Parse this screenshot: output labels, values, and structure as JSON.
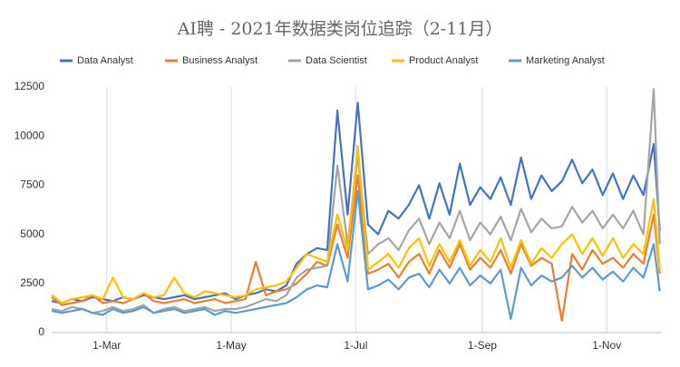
{
  "chart_data": {
    "type": "line",
    "title": "AI聘 - 2021年数据类岗位追踪（2-11月）",
    "x": [
      "02-02",
      "02-07",
      "02-12",
      "02-17",
      "02-22",
      "02-27",
      "03-04",
      "03-09",
      "03-14",
      "03-19",
      "03-24",
      "03-29",
      "04-03",
      "04-08",
      "04-13",
      "04-18",
      "04-23",
      "04-28",
      "05-03",
      "05-08",
      "05-13",
      "05-18",
      "05-23",
      "05-28",
      "06-02",
      "06-07",
      "06-12",
      "06-17",
      "06-22",
      "06-27",
      "07-02",
      "07-07",
      "07-12",
      "07-17",
      "07-22",
      "07-27",
      "08-01",
      "08-06",
      "08-11",
      "08-16",
      "08-21",
      "08-26",
      "08-31",
      "09-05",
      "09-10",
      "09-15",
      "09-20",
      "09-25",
      "09-30",
      "10-05",
      "10-10",
      "10-15",
      "10-20",
      "10-25",
      "10-30",
      "11-04",
      "11-09",
      "11-14",
      "11-19",
      "11-24",
      "11-27"
    ],
    "series": [
      {
        "name": "Data Analyst",
        "color": "#4472c4",
        "values": [
          1600,
          1500,
          1700,
          1600,
          1800,
          1700,
          1600,
          1800,
          1700,
          1900,
          1800,
          1700,
          1800,
          1900,
          1700,
          1800,
          1900,
          2000,
          1700,
          1900,
          2000,
          2200,
          2100,
          2400,
          3500,
          4000,
          4300,
          4200,
          11300,
          6000,
          11700,
          5500,
          5000,
          6200,
          5800,
          6500,
          7500,
          5800,
          7600,
          6000,
          8600,
          6500,
          7400,
          6800,
          7900,
          6500,
          8900,
          6800,
          8000,
          7200,
          7700,
          8800,
          7600,
          8300,
          7000,
          8100,
          6800,
          8000,
          7000,
          9600,
          5200
        ]
      },
      {
        "name": "Business Analyst",
        "color": "#ed7d31",
        "values": [
          1800,
          1400,
          1500,
          1600,
          1900,
          1500,
          1600,
          1500,
          1700,
          2000,
          1600,
          1500,
          1600,
          1700,
          1500,
          1600,
          1700,
          1500,
          1600,
          1700,
          3600,
          1900,
          2100,
          2200,
          2500,
          3000,
          3600,
          3400,
          5500,
          3800,
          8000,
          3000,
          3200,
          3500,
          2800,
          3600,
          4000,
          3000,
          4200,
          3300,
          4500,
          3200,
          3800,
          3300,
          4200,
          3000,
          4500,
          3400,
          3800,
          3500,
          600,
          4000,
          3200,
          4200,
          3500,
          3800,
          3300,
          4000,
          3500,
          6000,
          3000
        ]
      },
      {
        "name": "Data Scientist",
        "color": "#a5a5a5",
        "values": [
          1200,
          1100,
          1300,
          1200,
          1000,
          1100,
          1300,
          1100,
          1200,
          1400,
          1000,
          1200,
          1300,
          1100,
          1200,
          1300,
          1100,
          1200,
          1200,
          1300,
          1500,
          1700,
          1600,
          1900,
          2800,
          3200,
          3300,
          3400,
          8500,
          4500,
          9000,
          4000,
          4500,
          4800,
          4200,
          5200,
          5800,
          4500,
          5600,
          4800,
          6200,
          4700,
          5600,
          5000,
          5900,
          4700,
          6300,
          5100,
          5800,
          5300,
          5400,
          6400,
          5600,
          6200,
          5300,
          6000,
          5300,
          6200,
          5000,
          12400,
          4500
        ]
      },
      {
        "name": "Product Analyst",
        "color": "#ffc000",
        "values": [
          1900,
          1500,
          1700,
          1800,
          1900,
          1700,
          2800,
          1800,
          1700,
          2000,
          1800,
          1900,
          2800,
          2000,
          1800,
          2100,
          2000,
          1900,
          1800,
          1900,
          2200,
          2300,
          2400,
          2600,
          3300,
          4000,
          3800,
          3600,
          6000,
          4200,
          9500,
          3200,
          3600,
          4000,
          3300,
          4300,
          4800,
          3400,
          4500,
          3600,
          4700,
          3400,
          4200,
          3600,
          4800,
          3300,
          4700,
          3500,
          4300,
          3800,
          4500,
          5000,
          4000,
          4800,
          3900,
          4800,
          3800,
          4500,
          4000,
          6800,
          3200
        ]
      },
      {
        "name": "Marketing Analyst",
        "color": "#5b9bd5",
        "values": [
          1100,
          1000,
          1100,
          1200,
          1000,
          900,
          1200,
          1000,
          1100,
          1300,
          1000,
          1100,
          1200,
          1000,
          1100,
          1200,
          900,
          1100,
          1000,
          1100,
          1200,
          1300,
          1400,
          1500,
          1800,
          2200,
          2400,
          2300,
          4500,
          2600,
          7200,
          2200,
          2400,
          2700,
          2200,
          2800,
          3000,
          2300,
          3200,
          2500,
          3300,
          2400,
          2900,
          2500,
          3200,
          700,
          3300,
          2400,
          2900,
          2600,
          2800,
          3400,
          2800,
          3300,
          2700,
          3100,
          2600,
          3300,
          2800,
          4500,
          2100
        ]
      }
    ],
    "xlim": [
      "02-02",
      "11-28"
    ],
    "xticks": [
      {
        "value": "03-01",
        "label": "1-Mar"
      },
      {
        "value": "05-01",
        "label": "1-May"
      },
      {
        "value": "07-01",
        "label": "1-Jul"
      },
      {
        "value": "09-01",
        "label": "1-Sep"
      },
      {
        "value": "11-01",
        "label": "1-Nov"
      }
    ],
    "ylim": [
      0,
      12500
    ],
    "yticks": [
      0,
      2500,
      5000,
      7500,
      10000,
      12500
    ],
    "grid": true
  }
}
